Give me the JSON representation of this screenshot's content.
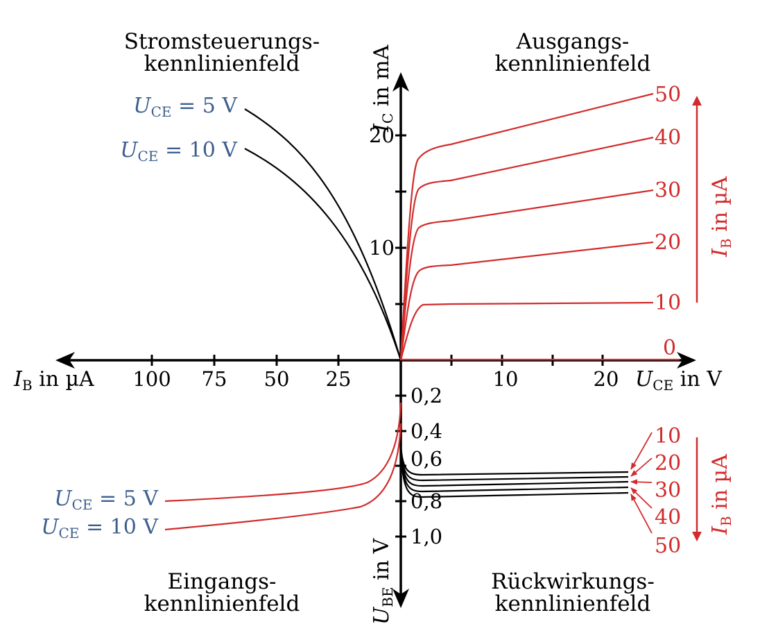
{
  "quadrants": {
    "top_left": {
      "line1": "Stromsteuerungs-",
      "line2": "kennlinienfeld"
    },
    "top_right": {
      "line1": "Ausgangs-",
      "line2": "kennlinienfeld"
    },
    "bottom_left": {
      "line1": "Eingangs-",
      "line2": "kennlinienfeld"
    },
    "bottom_right": {
      "line1": "Rückwirkungs-",
      "line2": "kennlinienfeld"
    }
  },
  "axes": {
    "ic": {
      "symbol": "I",
      "sub": "C",
      "unit": " in mA"
    },
    "ib": {
      "symbol": "I",
      "sub": "B",
      "unit": " in µA"
    },
    "uce": {
      "symbol": "U",
      "sub": "CE",
      "unit": " in V"
    },
    "ube": {
      "symbol": "U",
      "sub": "BE",
      "unit": " in V"
    }
  },
  "ticks": {
    "ic": [
      "20",
      "10"
    ],
    "ib": [
      "100",
      "75",
      "50",
      "25"
    ],
    "uce": [
      "10",
      "20"
    ],
    "ube": [
      "0,2",
      "0,4",
      "0,6",
      "0,8",
      "1,0"
    ]
  },
  "top_left_labels": [
    {
      "symbol": "U",
      "sub": "CE",
      "value": " = 5 V"
    },
    {
      "symbol": "U",
      "sub": "CE",
      "value": " = 10 V"
    }
  ],
  "bottom_left_labels": [
    {
      "symbol": "U",
      "sub": "CE",
      "value": " = 5 V"
    },
    {
      "symbol": "U",
      "sub": "CE",
      "value": " = 10 V"
    }
  ],
  "output_ib_values": [
    "50",
    "40",
    "30",
    "20",
    "10",
    "0"
  ],
  "output_ib_axis": {
    "symbol": "I",
    "sub": "B",
    "unit": " in µA"
  },
  "feedback_ib_values": [
    "10",
    "20",
    "30",
    "40",
    "50"
  ],
  "feedback_ib_axis": {
    "symbol": "I",
    "sub": "B",
    "unit": " in µA"
  },
  "colors": {
    "curve": "#000000",
    "red": "#d22b2b",
    "blue": "#3d5f8f"
  }
}
